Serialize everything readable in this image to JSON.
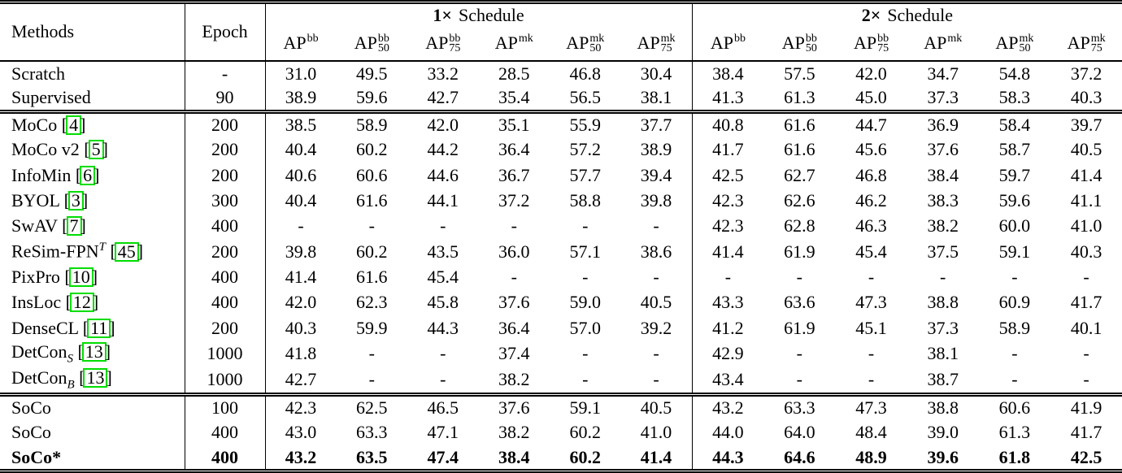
{
  "header": {
    "methods_label": "Methods",
    "epoch_label": "Epoch",
    "schedules": [
      {
        "prefix": "1×",
        "label": "Schedule"
      },
      {
        "prefix": "2×",
        "label": "Schedule"
      }
    ],
    "ap_columns": [
      {
        "base": "AP",
        "sup": "bb",
        "sub": ""
      },
      {
        "base": "AP",
        "sup": "bb",
        "sub": "50"
      },
      {
        "base": "AP",
        "sup": "bb",
        "sub": "75"
      },
      {
        "base": "AP",
        "sup": "mk",
        "sub": ""
      },
      {
        "base": "AP",
        "sup": "mk",
        "sub": "50"
      },
      {
        "base": "AP",
        "sup": "mk",
        "sub": "75"
      },
      {
        "base": "AP",
        "sup": "bb",
        "sub": ""
      },
      {
        "base": "AP",
        "sup": "bb",
        "sub": "50"
      },
      {
        "base": "AP",
        "sup": "bb",
        "sub": "75"
      },
      {
        "base": "AP",
        "sup": "mk",
        "sub": ""
      },
      {
        "base": "AP",
        "sup": "mk",
        "sub": "50"
      },
      {
        "base": "AP",
        "sup": "mk",
        "sub": "75"
      }
    ]
  },
  "rows": [
    {
      "method": {
        "text": "Scratch",
        "sup": "",
        "sub": "",
        "cite": null
      },
      "epoch": "-",
      "group": 0,
      "bold": false,
      "values": [
        "31.0",
        "49.5",
        "33.2",
        "28.5",
        "46.8",
        "30.4",
        "38.4",
        "57.5",
        "42.0",
        "34.7",
        "54.8",
        "37.2"
      ]
    },
    {
      "method": {
        "text": "Supervised",
        "sup": "",
        "sub": "",
        "cite": null
      },
      "epoch": "90",
      "group": 0,
      "bold": false,
      "values": [
        "38.9",
        "59.6",
        "42.7",
        "35.4",
        "56.5",
        "38.1",
        "41.3",
        "61.3",
        "45.0",
        "37.3",
        "58.3",
        "40.3"
      ]
    },
    {
      "method": {
        "text": "MoCo",
        "sup": "",
        "sub": "",
        "cite": "4"
      },
      "epoch": "200",
      "group": 1,
      "bold": false,
      "values": [
        "38.5",
        "58.9",
        "42.0",
        "35.1",
        "55.9",
        "37.7",
        "40.8",
        "61.6",
        "44.7",
        "36.9",
        "58.4",
        "39.7"
      ]
    },
    {
      "method": {
        "text": "MoCo v2",
        "sup": "",
        "sub": "",
        "cite": "5"
      },
      "epoch": "200",
      "group": 1,
      "bold": false,
      "values": [
        "40.4",
        "60.2",
        "44.2",
        "36.4",
        "57.2",
        "38.9",
        "41.7",
        "61.6",
        "45.6",
        "37.6",
        "58.7",
        "40.5"
      ]
    },
    {
      "method": {
        "text": "InfoMin",
        "sup": "",
        "sub": "",
        "cite": "6"
      },
      "epoch": "200",
      "group": 1,
      "bold": false,
      "values": [
        "40.6",
        "60.6",
        "44.6",
        "36.7",
        "57.7",
        "39.4",
        "42.5",
        "62.7",
        "46.8",
        "38.4",
        "59.7",
        "41.4"
      ]
    },
    {
      "method": {
        "text": "BYOL",
        "sup": "",
        "sub": "",
        "cite": "3"
      },
      "epoch": "300",
      "group": 1,
      "bold": false,
      "values": [
        "40.4",
        "61.6",
        "44.1",
        "37.2",
        "58.8",
        "39.8",
        "42.3",
        "62.6",
        "46.2",
        "38.3",
        "59.6",
        "41.1"
      ]
    },
    {
      "method": {
        "text": "SwAV",
        "sup": "",
        "sub": "",
        "cite": "7"
      },
      "epoch": "400",
      "group": 1,
      "bold": false,
      "values": [
        "-",
        "-",
        "-",
        "-",
        "-",
        "-",
        "42.3",
        "62.8",
        "46.3",
        "38.2",
        "60.0",
        "41.0"
      ]
    },
    {
      "method": {
        "text": "ReSim-FPN",
        "sup": "T",
        "sub": "",
        "cite": "45"
      },
      "epoch": "200",
      "group": 1,
      "bold": false,
      "values": [
        "39.8",
        "60.2",
        "43.5",
        "36.0",
        "57.1",
        "38.6",
        "41.4",
        "61.9",
        "45.4",
        "37.5",
        "59.1",
        "40.3"
      ]
    },
    {
      "method": {
        "text": "PixPro",
        "sup": "",
        "sub": "",
        "cite": "10"
      },
      "epoch": "400",
      "group": 1,
      "bold": false,
      "values": [
        "41.4",
        "61.6",
        "45.4",
        "-",
        "-",
        "-",
        "-",
        "-",
        "-",
        "-",
        "-",
        "-"
      ]
    },
    {
      "method": {
        "text": "InsLoc",
        "sup": "",
        "sub": "",
        "cite": "12"
      },
      "epoch": "400",
      "group": 1,
      "bold": false,
      "values": [
        "42.0",
        "62.3",
        "45.8",
        "37.6",
        "59.0",
        "40.5",
        "43.3",
        "63.6",
        "47.3",
        "38.8",
        "60.9",
        "41.7"
      ]
    },
    {
      "method": {
        "text": "DenseCL",
        "sup": "",
        "sub": "",
        "cite": "11"
      },
      "epoch": "200",
      "group": 1,
      "bold": false,
      "values": [
        "40.3",
        "59.9",
        "44.3",
        "36.4",
        "57.0",
        "39.2",
        "41.2",
        "61.9",
        "45.1",
        "37.3",
        "58.9",
        "40.1"
      ]
    },
    {
      "method": {
        "text": "DetCon",
        "sup": "",
        "sub": "S",
        "cite": "13"
      },
      "epoch": "1000",
      "group": 1,
      "bold": false,
      "values": [
        "41.8",
        "-",
        "-",
        "37.4",
        "-",
        "-",
        "42.9",
        "-",
        "-",
        "38.1",
        "-",
        "-"
      ]
    },
    {
      "method": {
        "text": "DetCon",
        "sup": "",
        "sub": "B",
        "cite": "13"
      },
      "epoch": "1000",
      "group": 1,
      "bold": false,
      "values": [
        "42.7",
        "-",
        "-",
        "38.2",
        "-",
        "-",
        "43.4",
        "-",
        "-",
        "38.7",
        "-",
        "-"
      ]
    },
    {
      "method": {
        "text": "SoCo",
        "sup": "",
        "sub": "",
        "cite": null
      },
      "epoch": "100",
      "group": 2,
      "bold": false,
      "values": [
        "42.3",
        "62.5",
        "46.5",
        "37.6",
        "59.1",
        "40.5",
        "43.2",
        "63.3",
        "47.3",
        "38.8",
        "60.6",
        "41.9"
      ]
    },
    {
      "method": {
        "text": "SoCo",
        "sup": "",
        "sub": "",
        "cite": null
      },
      "epoch": "400",
      "group": 2,
      "bold": false,
      "values": [
        "43.0",
        "63.3",
        "47.1",
        "38.2",
        "60.2",
        "41.0",
        "44.0",
        "64.0",
        "48.4",
        "39.0",
        "61.3",
        "41.7"
      ]
    },
    {
      "method": {
        "text": "SoCo*",
        "sup": "",
        "sub": "",
        "cite": null
      },
      "epoch": "400",
      "group": 2,
      "bold": true,
      "values": [
        "43.2",
        "63.5",
        "47.4",
        "38.4",
        "60.2",
        "41.4",
        "44.3",
        "64.6",
        "48.9",
        "39.6",
        "61.8",
        "42.5"
      ]
    }
  ],
  "colors": {
    "citation_box": "#00dd00",
    "text": "#000000",
    "background": "#ffffff"
  }
}
